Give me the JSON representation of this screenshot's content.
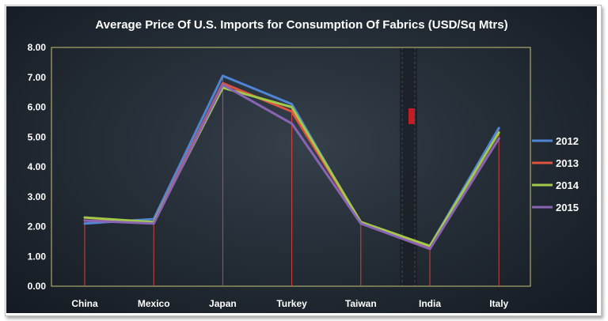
{
  "chart_data": {
    "type": "line",
    "title": "Average Price Of U.S. Imports for Consumption Of Fabrics (USD/Sq Mtrs)",
    "categories": [
      "China",
      "Mexico",
      "Japan",
      "Turkey",
      "Taiwan",
      "India",
      "Italy"
    ],
    "ylim": [
      0,
      8
    ],
    "yticks": [
      "0.00",
      "1.00",
      "2.00",
      "3.00",
      "4.00",
      "5.00",
      "6.00",
      "7.00",
      "8.00"
    ],
    "legend_position": "right",
    "series": [
      {
        "name": "2012",
        "color": "#4f86d4",
        "values": [
          2.1,
          2.25,
          7.05,
          6.1,
          2.1,
          1.35,
          5.3
        ]
      },
      {
        "name": "2013",
        "color": "#e0533f",
        "values": [
          2.2,
          2.15,
          6.8,
          5.85,
          2.15,
          1.3,
          4.95
        ]
      },
      {
        "name": "2014",
        "color": "#a3c94a",
        "values": [
          2.3,
          2.15,
          6.65,
          6.0,
          2.15,
          1.35,
          5.15
        ]
      },
      {
        "name": "2015",
        "color": "#8a64b4",
        "values": [
          2.2,
          2.1,
          6.75,
          5.45,
          2.1,
          1.25,
          4.95
        ]
      }
    ],
    "drop_line_color": "#d9433a"
  }
}
